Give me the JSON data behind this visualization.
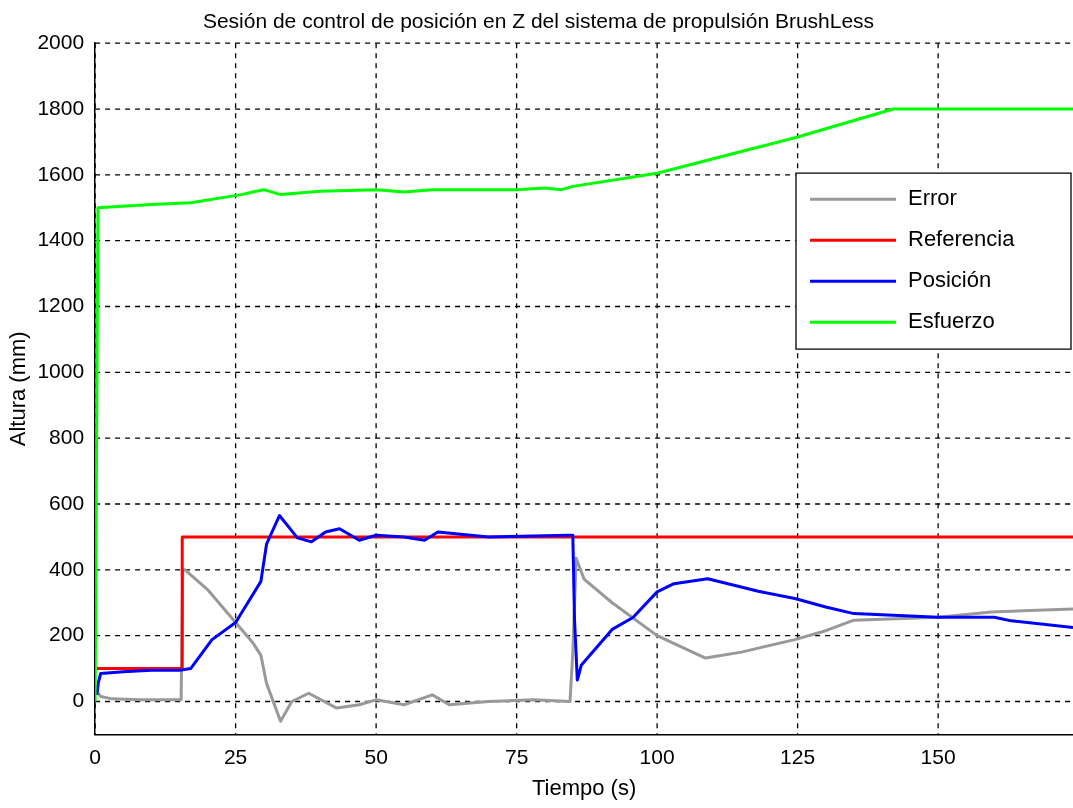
{
  "chart_data": {
    "type": "line",
    "title": "Sesión de control de posición en Z del sistema de propulsión BrushLess",
    "xlabel": "Tiempo (s)",
    "ylabel": "Altura (mm)",
    "xlim": [
      0,
      174
    ],
    "ylim": [
      -100,
      2000
    ],
    "xticks": [
      0,
      25,
      50,
      75,
      100,
      125,
      150
    ],
    "yticks": [
      0,
      200,
      400,
      600,
      800,
      1000,
      1200,
      1400,
      1600,
      1800,
      2000
    ],
    "grid": true,
    "legend": "top right",
    "line_style": "solid",
    "marker": "none",
    "series": [
      {
        "name": "Error",
        "color": "#999999",
        "x": [
          0.3,
          1,
          3,
          8,
          15.3,
          15.6,
          16,
          20,
          25,
          28,
          29.5,
          30.5,
          33,
          35,
          38,
          43,
          47,
          50,
          55,
          60,
          63,
          70,
          78,
          84.5,
          85,
          85.6,
          87,
          92,
          100,
          108.6,
          115,
          124.5,
          130,
          135,
          150,
          159.5,
          174
        ],
        "values": [
          30,
          15,
          8,
          5,
          5,
          400,
          400,
          340,
          240,
          180,
          140,
          55,
          -60,
          0,
          25,
          -20,
          -10,
          5,
          -10,
          20,
          -10,
          0,
          5,
          0,
          150,
          435,
          372,
          300,
          200,
          132,
          150,
          188,
          215,
          247,
          256,
          272,
          281
        ]
      },
      {
        "name": "Referencia",
        "color": "#ff0000",
        "x": [
          0.3,
          15.5,
          15.5,
          174
        ],
        "values": [
          100,
          100,
          500,
          500
        ]
      },
      {
        "name": "Posición",
        "color": "#0000ff",
        "x": [
          0.3,
          0.6,
          1,
          5,
          10,
          15,
          17,
          20.8,
          25,
          29.5,
          30.5,
          32.8,
          36,
          38.5,
          41,
          43.5,
          47,
          50,
          55,
          58.6,
          61,
          70,
          84.5,
          85,
          85.3,
          85.8,
          86.5,
          92,
          95.7,
          100,
          103,
          109,
          118,
          124.5,
          130,
          135,
          150,
          160,
          163,
          174
        ],
        "values": [
          20,
          60,
          85,
          90,
          95,
          95,
          100,
          188,
          240,
          365,
          478,
          565,
          497,
          485,
          515,
          525,
          490,
          505,
          500,
          490,
          515,
          500,
          505,
          505,
          250,
          65,
          110,
          219,
          255,
          333,
          358,
          373,
          335,
          313,
          287,
          267,
          256,
          256,
          245,
          225
        ]
      },
      {
        "name": "Esfuerzo",
        "color": "#00ff00",
        "x": [
          0,
          0.5,
          10,
          17,
          26,
          30,
          33,
          40,
          50,
          55,
          60,
          75,
          80,
          83,
          85,
          100,
          125,
          142,
          174
        ],
        "values": [
          0,
          1500,
          1510,
          1515,
          1540,
          1555,
          1540,
          1550,
          1555,
          1548,
          1555,
          1555,
          1560,
          1555,
          1565,
          1605,
          1715,
          1800,
          1800
        ]
      }
    ]
  }
}
